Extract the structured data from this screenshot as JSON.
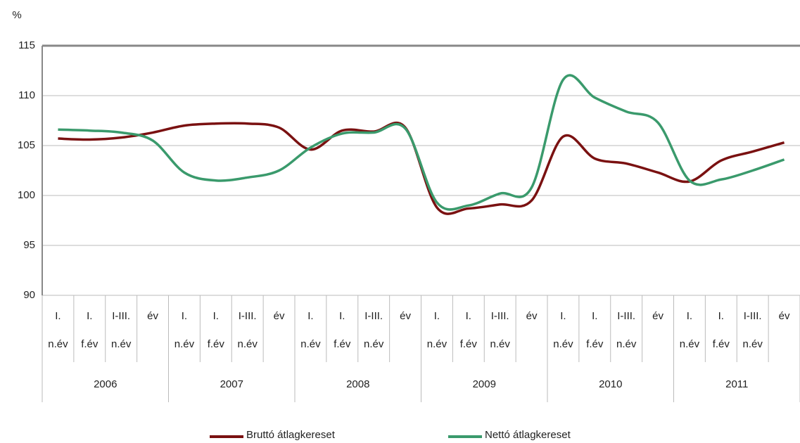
{
  "chart_data": {
    "type": "line",
    "y_label": "%",
    "categories": [
      [
        "I.",
        "n.év"
      ],
      [
        "I.",
        "f.év"
      ],
      [
        "I-III.",
        "n.év"
      ],
      [
        "év"
      ],
      [
        "I.",
        "n.év"
      ],
      [
        "I.",
        "f.év"
      ],
      [
        "I-III.",
        "n.év"
      ],
      [
        "év"
      ],
      [
        "I.",
        "n.év"
      ],
      [
        "I.",
        "f.év"
      ],
      [
        "I-III.",
        "n.év"
      ],
      [
        "év"
      ],
      [
        "I.",
        "n.év"
      ],
      [
        "I.",
        "f.év"
      ],
      [
        "I-III.",
        "n.év"
      ],
      [
        "év"
      ],
      [
        "I.",
        "n.év"
      ],
      [
        "I.",
        "f.év"
      ],
      [
        "I-III.",
        "n.év"
      ],
      [
        "év"
      ],
      [
        "I.",
        "n.év"
      ],
      [
        "I.",
        "f.év"
      ],
      [
        "I-III.",
        "n.év"
      ],
      [
        "év"
      ]
    ],
    "years": [
      "2006",
      "2007",
      "2008",
      "2009",
      "2010",
      "2011"
    ],
    "series": [
      {
        "name": "Bruttó átlagkereset",
        "color": "#7a1111",
        "values": [
          105.7,
          105.6,
          105.8,
          106.3,
          107.0,
          107.2,
          107.2,
          106.8,
          104.6,
          106.5,
          106.4,
          106.8,
          98.8,
          98.7,
          99.1,
          99.5,
          105.9,
          103.7,
          103.2,
          102.3,
          101.4,
          103.5,
          104.4,
          105.3
        ]
      },
      {
        "name": "Nettó átlagkereset",
        "color": "#3a9a6c",
        "values": [
          106.6,
          106.5,
          106.3,
          105.5,
          102.3,
          101.5,
          101.8,
          102.5,
          104.8,
          106.2,
          106.3,
          106.7,
          99.3,
          99.0,
          100.2,
          100.8,
          111.6,
          109.8,
          108.4,
          107.3,
          101.5,
          101.6,
          102.5,
          103.6
        ]
      }
    ],
    "ylim": [
      90,
      115
    ],
    "yticks": [
      90,
      95,
      100,
      105,
      110,
      115
    ],
    "grid": true,
    "legend": "bottom"
  }
}
